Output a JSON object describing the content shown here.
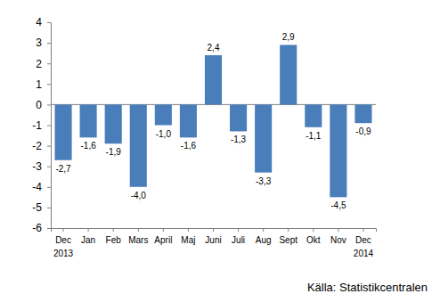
{
  "chart_data": {
    "type": "bar",
    "categories": [
      "Dec",
      "Jan",
      "Feb",
      "Mars",
      "April",
      "Maj",
      "Juni",
      "Juli",
      "Aug",
      "Sept",
      "Okt",
      "Nov",
      "Dec"
    ],
    "values": [
      -2.7,
      -1.6,
      -1.9,
      -4.0,
      -1.0,
      -1.6,
      2.4,
      -1.3,
      -3.3,
      2.9,
      -1.1,
      -4.5,
      -0.9
    ],
    "value_labels": [
      "-2,7",
      "-1,6",
      "-1,9",
      "-4,0",
      "-1,0",
      "-1,6",
      "2,4",
      "-1,3",
      "-3,3",
      "2,9",
      "-1,1",
      "-4,5",
      "-0,9"
    ],
    "color": "#4a7ebb",
    "ylim": [
      -6,
      4
    ],
    "yticks": [
      -6,
      -5,
      -4,
      -3,
      -2,
      -1,
      0,
      1,
      2,
      3,
      4
    ],
    "grid": false,
    "data_labels": true,
    "annotations": [
      {
        "text": "2013",
        "category_index": 0
      },
      {
        "text": "2014",
        "category_index": 12
      }
    ],
    "source": "Källa: Statistikcentralen"
  }
}
